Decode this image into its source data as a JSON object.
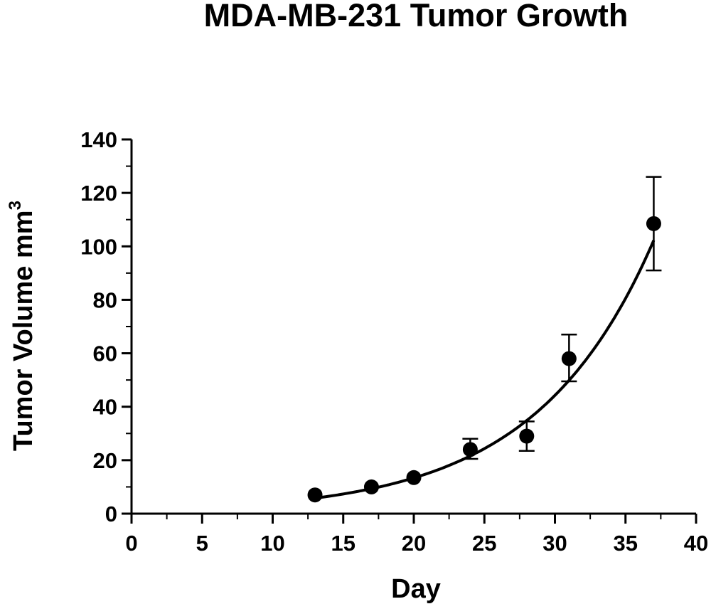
{
  "chart_data": {
    "type": "scatter",
    "title": "MDA-MB-231 Tumor Growth",
    "xlabel": "Day",
    "ylabel": "Tumor Volume mm",
    "ylabel_superscript": "3",
    "xlim": [
      0,
      40
    ],
    "ylim": [
      0,
      140
    ],
    "x_ticks": [
      "0",
      "5",
      "10",
      "15",
      "20",
      "25",
      "30",
      "35",
      "40"
    ],
    "y_ticks": [
      "0",
      "20",
      "40",
      "60",
      "80",
      "100",
      "120",
      "140"
    ],
    "grid": false,
    "series": [
      {
        "points": [
          {
            "x": 13,
            "y": 7,
            "err_low": 7,
            "err_high": 7
          },
          {
            "x": 17,
            "y": 10,
            "err_low": 10,
            "err_high": 10
          },
          {
            "x": 20,
            "y": 13.5,
            "err_low": 13.5,
            "err_high": 13.5
          },
          {
            "x": 24,
            "y": 24,
            "err_low": 20.5,
            "err_high": 28
          },
          {
            "x": 28,
            "y": 29,
            "err_low": 23.5,
            "err_high": 34.5
          },
          {
            "x": 31,
            "y": 58,
            "err_low": 49.5,
            "err_high": 67
          },
          {
            "x": 37,
            "y": 108.5,
            "err_low": 91,
            "err_high": 126
          }
        ],
        "color": "#000000"
      }
    ],
    "fit": {
      "type": "exponential",
      "x_range": [
        13,
        37
      ],
      "points": [
        {
          "x": 13,
          "y": 5.8
        },
        {
          "x": 17,
          "y": 9.4
        },
        {
          "x": 20,
          "y": 13.4
        },
        {
          "x": 24,
          "y": 21.5
        },
        {
          "x": 28,
          "y": 34.5
        },
        {
          "x": 31,
          "y": 49.5
        },
        {
          "x": 34,
          "y": 71
        },
        {
          "x": 37,
          "y": 104
        }
      ]
    }
  }
}
